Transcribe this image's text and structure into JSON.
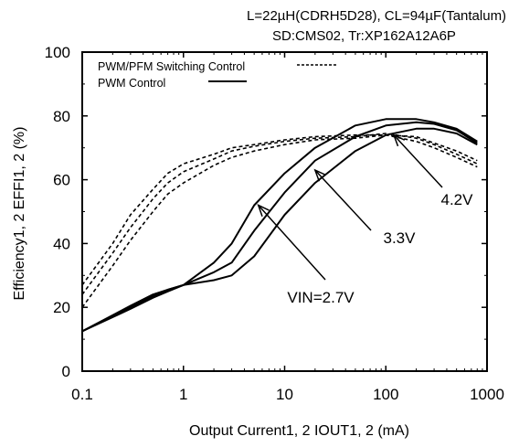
{
  "header": {
    "line1": "L=22µH(CDRH5D28), CL=94µF(Tantalum)",
    "line2": "SD:CMS02, Tr:XP162A12A6P"
  },
  "chart_data": {
    "type": "line",
    "xlabel": "Output Current1, 2  IOUT1, 2 (mA)",
    "ylabel": "Efficiency1, 2 EFFI1, 2  (%)",
    "xscale": "log",
    "xlim": [
      0.1,
      1000
    ],
    "ylim": [
      0,
      100
    ],
    "x_ticks": [
      "0.1",
      "1",
      "10",
      "100",
      "1000"
    ],
    "y_ticks": [
      "0",
      "20",
      "40",
      "60",
      "80",
      "100"
    ],
    "grid": false,
    "legend_position": "top-left",
    "legend": [
      {
        "name": "PWM/PFM Switching Control",
        "style": "dotted"
      },
      {
        "name": "PWM  Control",
        "style": "solid"
      }
    ],
    "annotations": [
      {
        "text": "4.2V",
        "arrow_to": {
          "x": 120,
          "y": 74
        }
      },
      {
        "text": "3.3V",
        "arrow_to": {
          "x": 20,
          "y": 63
        }
      },
      {
        "text": "VIN=2.7V",
        "arrow_to": {
          "x": 5.5,
          "y": 52
        }
      }
    ],
    "series": [
      {
        "name": "VIN=2.7V",
        "control": "PWM/PFM Switching Control",
        "style": "dotted",
        "x": [
          0.1,
          0.2,
          0.3,
          0.5,
          0.7,
          1,
          2,
          3,
          5,
          10,
          20,
          50,
          100,
          200,
          300,
          500,
          800
        ],
        "y": [
          27,
          40,
          49,
          57,
          62,
          65,
          68,
          70,
          71,
          72.5,
          73.5,
          74,
          74,
          72,
          70,
          67,
          64
        ]
      },
      {
        "name": "3.3V",
        "control": "PWM/PFM Switching Control",
        "style": "dotted",
        "x": [
          0.1,
          0.2,
          0.3,
          0.5,
          0.7,
          1,
          2,
          3,
          5,
          10,
          20,
          50,
          100,
          200,
          300,
          500,
          800
        ],
        "y": [
          24,
          37,
          45,
          54,
          59,
          62.5,
          66.5,
          69,
          70.5,
          72,
          73,
          73.5,
          74.5,
          73,
          71,
          68,
          65
        ]
      },
      {
        "name": "4.2V",
        "control": "PWM/PFM Switching Control",
        "style": "dotted",
        "x": [
          0.1,
          0.2,
          0.3,
          0.5,
          0.7,
          1,
          2,
          3,
          5,
          10,
          20,
          50,
          100,
          200,
          300,
          500,
          800
        ],
        "y": [
          20,
          33,
          41,
          50,
          55.5,
          59,
          64.5,
          67,
          69,
          71,
          72.5,
          73,
          74,
          73.5,
          71.5,
          69,
          66
        ]
      },
      {
        "name": "VIN=2.7V",
        "control": "PWM  Control",
        "style": "solid",
        "x": [
          0.1,
          0.3,
          0.5,
          0.7,
          1,
          2,
          3,
          5,
          10,
          20,
          50,
          100,
          200,
          300,
          500,
          800
        ],
        "y": [
          12.5,
          20.5,
          24,
          25.5,
          27,
          34,
          40,
          52,
          62,
          70,
          77,
          79,
          79,
          78,
          76,
          72
        ]
      },
      {
        "name": "3.3V",
        "control": "PWM  Control",
        "style": "solid",
        "x": [
          0.1,
          0.3,
          0.5,
          0.7,
          1,
          2,
          3,
          5,
          10,
          20,
          50,
          100,
          200,
          300,
          500,
          800
        ],
        "y": [
          12.5,
          20,
          23.5,
          25.5,
          27,
          31,
          34,
          44,
          56,
          66,
          73.5,
          77,
          78,
          77.5,
          75.5,
          71.5
        ]
      },
      {
        "name": "4.2V",
        "control": "PWM  Control",
        "style": "solid",
        "x": [
          0.1,
          0.3,
          0.5,
          0.7,
          1,
          2,
          3,
          5,
          10,
          20,
          50,
          100,
          200,
          300,
          500,
          800
        ],
        "y": [
          12.5,
          19.5,
          23,
          25,
          27,
          28.5,
          30,
          36,
          49,
          59,
          69,
          74,
          76,
          76,
          74.5,
          71
        ]
      }
    ]
  }
}
